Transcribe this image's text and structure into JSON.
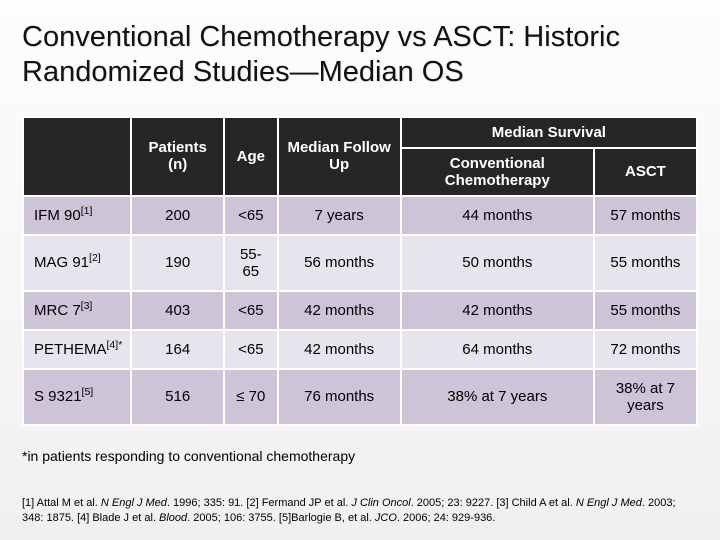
{
  "title": "Conventional Chemotherapy vs ASCT: Historic Randomized Studies—Median OS",
  "table": {
    "type": "table",
    "header_bg": "#262626",
    "header_fg": "#ffffff",
    "row_bg_odd": "#cdc5d7",
    "row_bg_even": "#e8e4ee",
    "border_color": "#ffffff",
    "font_size": 15,
    "columns": {
      "study": "",
      "patients": "Patients (n)",
      "age": "Age",
      "followup": "Median Follow Up",
      "survival_group": "Median Survival",
      "conv": "Conventional Chemotherapy",
      "asct": "ASCT"
    },
    "rows": [
      {
        "study": "IFM 90",
        "ref": "[1]",
        "patients": "200",
        "age": "<65",
        "followup": "7 years",
        "conv": "44 months",
        "asct": "57 months"
      },
      {
        "study": "MAG 91",
        "ref": "[2]",
        "patients": "190",
        "age": "55-65",
        "followup": "56 months",
        "conv": "50 months",
        "asct": "55 months"
      },
      {
        "study": "MRC 7",
        "ref": "[3]",
        "patients": "403",
        "age": "<65",
        "followup": "42 months",
        "conv": "42 months",
        "asct": "55 months"
      },
      {
        "study": "PETHEMA",
        "ref": "[4]*",
        "patients": "164",
        "age": "<65",
        "followup": "42 months",
        "conv": "64 months",
        "asct": "72 months"
      },
      {
        "study": "S 9321",
        "ref": "[5]",
        "patients": "516",
        "age": "≤ 70",
        "followup": "76 months",
        "conv": "38% at 7 years",
        "asct": "38% at 7 years"
      }
    ]
  },
  "footnote": "*in patients responding to conventional chemotherapy",
  "refs": {
    "r1": "[1] Attal M et al. ",
    "r1j": "N Engl J Med",
    "r1t": ". 1996; 335: 91. ",
    "r2": "[2] Fermand JP et al. ",
    "r2j": "J Clin Oncol",
    "r2t": ". 2005; 23: 9227. ",
    "r3": "[3] Child A et al. ",
    "r3j": "N Engl J Med",
    "r3t": ". 2003; 348: 1875. ",
    "r4": "[4] Blade J et al. ",
    "r4j": "Blood",
    "r4t": ". 2005; 106: 3755. ",
    "r5": "[5]Barlogie B, et al. ",
    "r5j": "JCO",
    "r5t": ". 2006; 24: 929-936."
  }
}
